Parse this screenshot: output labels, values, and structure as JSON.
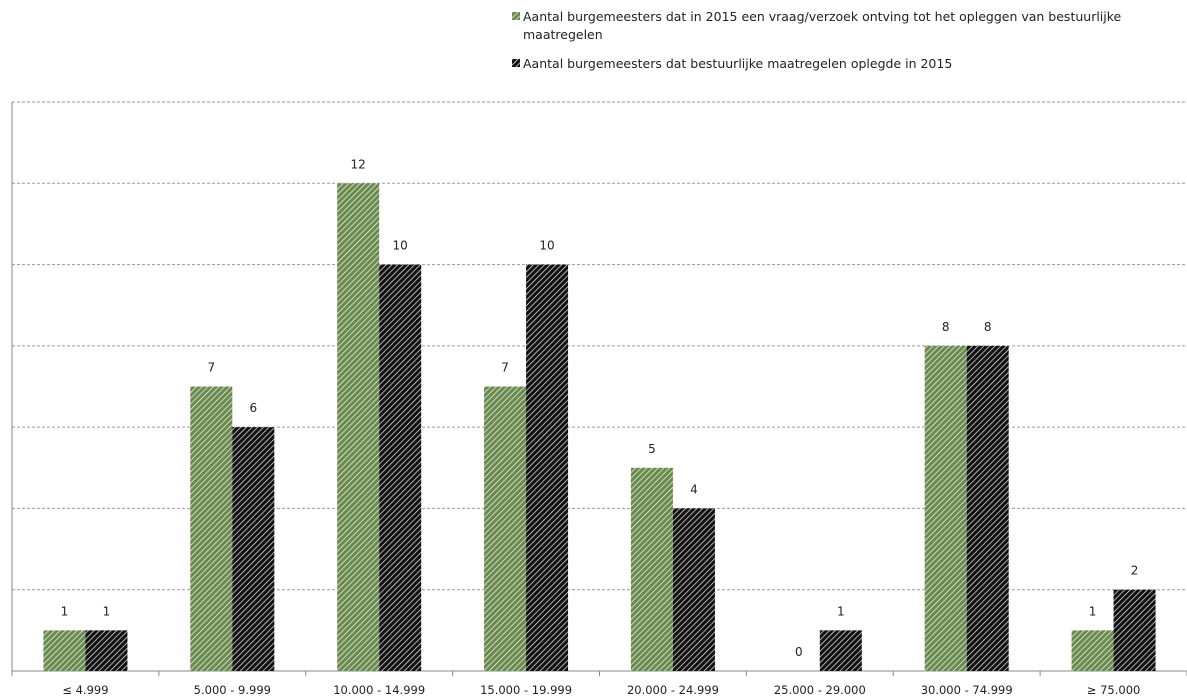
{
  "chart_data": {
    "type": "bar",
    "categories": [
      "≤ 4.999",
      "5.000 - 9.999",
      "10.000 - 14.999",
      "15.000 - 19.999",
      "20.000 - 24.999",
      "25.000 - 29.000",
      "30.000 - 74.999",
      "≥ 75.000"
    ],
    "series": [
      {
        "name": "Aantal burgemeesters dat in 2015 een vraag/verzoek ontving tot het opleggen van bestuurlijke maatregelen",
        "values": [
          1,
          7,
          12,
          7,
          5,
          0,
          8,
          1
        ],
        "color": "#6a8a4e"
      },
      {
        "name": "Aantal burgemeesters dat bestuurlijke maatregelen oplegde in 2015",
        "values": [
          1,
          6,
          10,
          10,
          4,
          1,
          8,
          2
        ],
        "color": "#111111"
      }
    ],
    "ylim": [
      0,
      14
    ],
    "grid": true,
    "grid_step": 2,
    "legend_position": "top-right"
  }
}
